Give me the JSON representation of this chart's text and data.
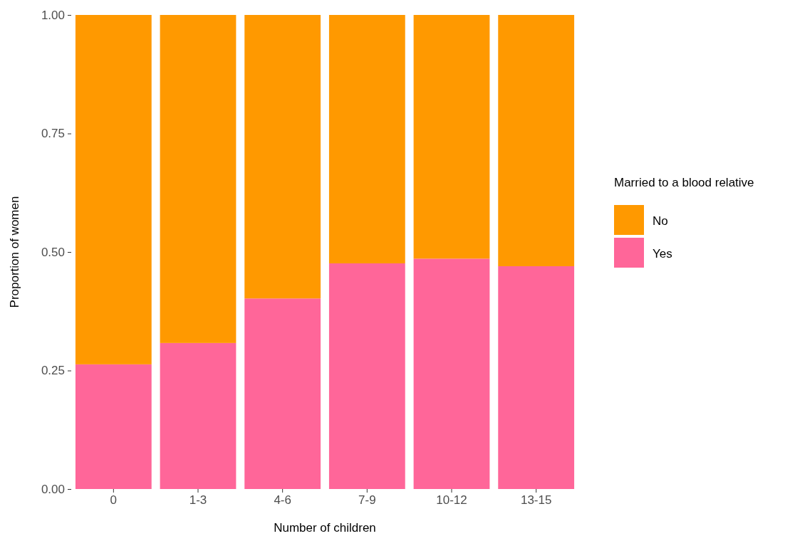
{
  "chart_data": {
    "type": "bar",
    "xlabel": "Number of children",
    "ylabel": "Proportion of women",
    "legend_title": "Married to a blood relative",
    "categories": [
      "0",
      "1-3",
      "4-6",
      "7-9",
      "10-12",
      "13-15"
    ],
    "series": [
      {
        "name": "Yes",
        "color": "#ff6699",
        "values": [
          0.263,
          0.308,
          0.402,
          0.476,
          0.486,
          0.47
        ]
      },
      {
        "name": "No",
        "color": "#ff9900",
        "values": [
          0.737,
          0.692,
          0.598,
          0.524,
          0.514,
          0.53
        ]
      }
    ],
    "stacked": true,
    "ylim": [
      0,
      1
    ],
    "yticks": [
      {
        "value": 0,
        "label": "0.00"
      },
      {
        "value": 0.25,
        "label": "0.25"
      },
      {
        "value": 0.5,
        "label": "0.50"
      },
      {
        "value": 0.75,
        "label": "0.75"
      },
      {
        "value": 1,
        "label": "1.00"
      }
    ],
    "grid": false,
    "legend": "right"
  }
}
